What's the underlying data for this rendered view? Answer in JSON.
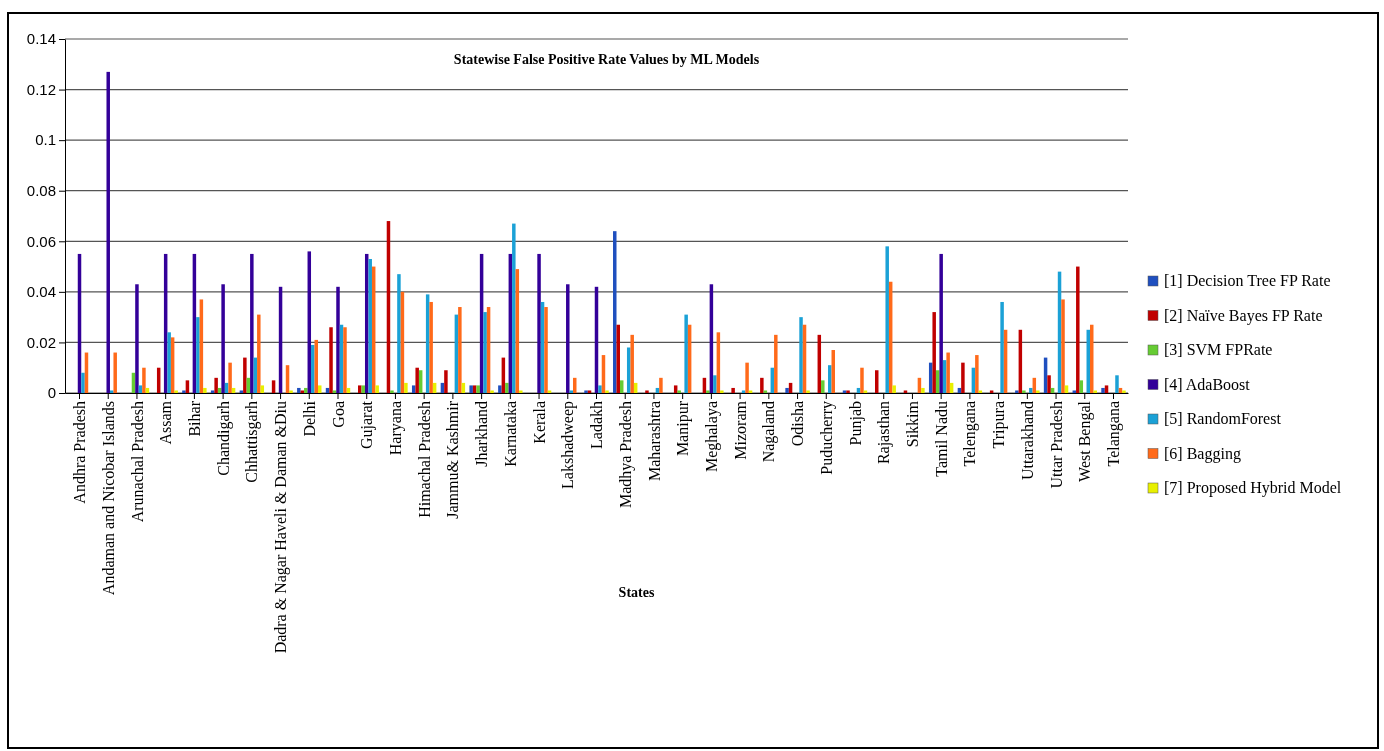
{
  "chart_data": {
    "type": "bar",
    "title": "Statewise False Positive Rate Values by ML Models",
    "xlabel": "States",
    "categories": [
      "Andhra Pradesh",
      "Andaman and Nicobar Islands",
      "Arunachal Pradesh",
      "Assam",
      "Bihar",
      "Chandigarh",
      "Chhattisgarh",
      "Dadra & Nagar Haveli & Daman &Diu",
      "Delhi",
      "Goa",
      "Gujarat",
      "Haryana",
      "Himachal Pradesh",
      "Jammu& Kashmir",
      "Jharkhand",
      "Karnataka",
      "Kerala",
      "Lakshadweep",
      "Ladakh",
      "Madhya Pradesh",
      "Maharashtra",
      "Manipur",
      "Meghalaya",
      "Mizoram",
      "Nagaland",
      "Odisha",
      "Puducherry",
      "Punjab",
      "Rajasthan",
      "Sikkim",
      "Tamil Nadu",
      "Telengana",
      "Tripura",
      "Uttarakhand",
      "Uttar Pradesh",
      "West Bengal",
      "Telangana"
    ],
    "series": [
      {
        "name": "[1] Decision Tree FP Rate",
        "color": "#1f4fbf",
        "values": [
          0,
          0,
          0,
          0,
          0.001,
          0.001,
          0.001,
          0,
          0.002,
          0.002,
          0,
          0,
          0.003,
          0.004,
          0.003,
          0.003,
          0,
          0,
          0.001,
          0.064,
          0,
          0,
          0,
          0,
          0,
          0.002,
          0,
          0.001,
          0,
          0,
          0.012,
          0.002,
          0,
          0.001,
          0.014,
          0.001,
          0.002
        ]
      },
      {
        "name": "[2] Naïve Bayes FP Rate",
        "color": "#c00000",
        "values": [
          0,
          0,
          0,
          0.01,
          0.005,
          0.006,
          0.014,
          0.005,
          0.001,
          0.026,
          0.003,
          0.068,
          0.01,
          0.009,
          0.003,
          0.014,
          0,
          0,
          0.001,
          0.027,
          0.001,
          0.003,
          0.006,
          0.002,
          0.006,
          0.004,
          0.023,
          0.001,
          0.009,
          0.001,
          0.032,
          0.012,
          0.001,
          0.025,
          0.007,
          0.05,
          0.003
        ]
      },
      {
        "name": "[3] SVM FPRate",
        "color": "#66cc33",
        "values": [
          0,
          0,
          0.008,
          0,
          0,
          0.002,
          0.006,
          0,
          0.002,
          0.001,
          0.003,
          0.001,
          0.009,
          0,
          0.003,
          0.004,
          0,
          0,
          0,
          0.005,
          0,
          0.001,
          0.001,
          0,
          0.001,
          0,
          0.005,
          0,
          0,
          0,
          0.009,
          0,
          0,
          0.001,
          0.002,
          0.005,
          0
        ]
      },
      {
        "name": "[4] AdaBoost",
        "color": "#330099",
        "values": [
          0.055,
          0.127,
          0.043,
          0.055,
          0.055,
          0.043,
          0.055,
          0.042,
          0.056,
          0.042,
          0.055,
          0,
          0,
          0,
          0.055,
          0.055,
          0.055,
          0.043,
          0.042,
          0,
          0,
          0,
          0.043,
          0,
          0,
          0,
          0,
          0,
          0,
          0,
          0.055,
          0,
          0,
          0,
          0,
          0,
          0
        ]
      },
      {
        "name": "[5] RandomForest",
        "color": "#1ba1d6",
        "values": [
          0.008,
          0.001,
          0.003,
          0.024,
          0.03,
          0.004,
          0.014,
          0,
          0.019,
          0.027,
          0.053,
          0.047,
          0.039,
          0.031,
          0.032,
          0.067,
          0.036,
          0.001,
          0.003,
          0.018,
          0.002,
          0.031,
          0.007,
          0.001,
          0.01,
          0.03,
          0.011,
          0.002,
          0.058,
          0,
          0.013,
          0.01,
          0.036,
          0.002,
          0.048,
          0.025,
          0.007
        ]
      },
      {
        "name": "[6] Bagging",
        "color": "#ff6a1a",
        "values": [
          0.016,
          0.016,
          0.01,
          0.022,
          0.037,
          0.012,
          0.031,
          0.011,
          0.021,
          0.026,
          0.05,
          0.04,
          0.036,
          0.034,
          0.034,
          0.049,
          0.034,
          0.006,
          0.015,
          0.023,
          0.006,
          0.027,
          0.024,
          0.012,
          0.023,
          0.027,
          0.017,
          0.01,
          0.044,
          0.006,
          0.016,
          0.015,
          0.025,
          0.006,
          0.037,
          0.027,
          0.002
        ]
      },
      {
        "name": "[7] Proposed Hybrid Model",
        "color": "#e8f000",
        "values": [
          0,
          0,
          0.002,
          0.001,
          0.002,
          0.002,
          0.003,
          0.001,
          0.003,
          0.002,
          0.003,
          0.004,
          0.004,
          0.004,
          0.001,
          0.001,
          0.001,
          0,
          0.001,
          0.004,
          0,
          0,
          0.001,
          0.001,
          0,
          0.001,
          0,
          0.001,
          0.003,
          0.002,
          0.004,
          0.001,
          0,
          0.001,
          0.003,
          0.001,
          0.001
        ]
      }
    ],
    "ylim": [
      0,
      0.14
    ],
    "yticks": [
      0,
      0.02,
      0.04,
      0.06,
      0.08,
      0.1,
      0.12,
      0.14
    ],
    "grid": "y",
    "legend": "right"
  }
}
